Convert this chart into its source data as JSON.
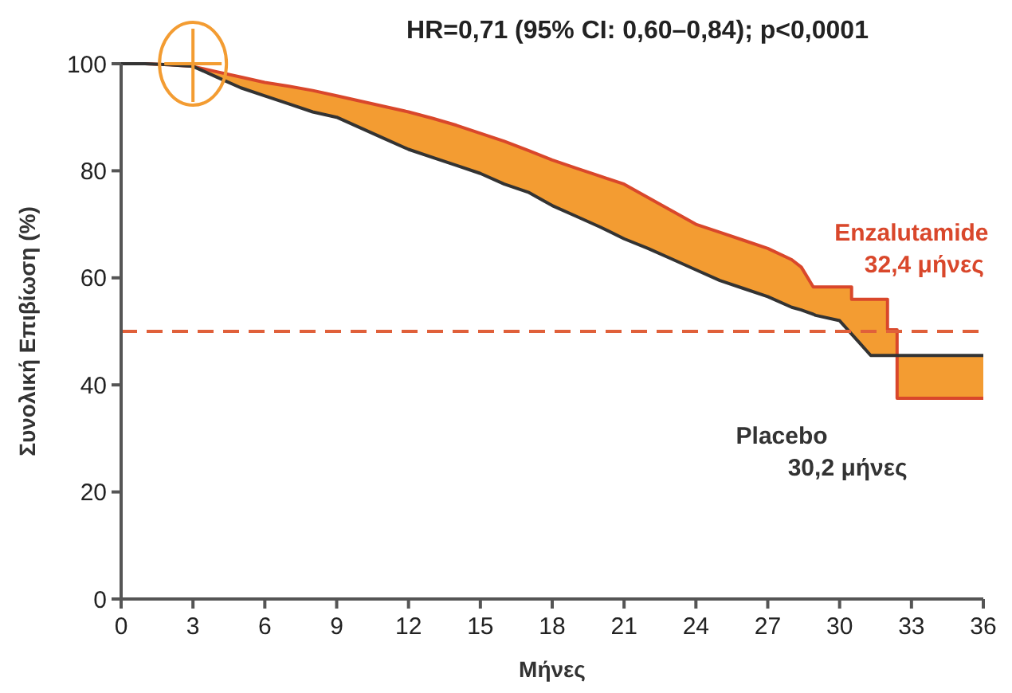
{
  "chart_data": {
    "type": "line",
    "title": "HR=0,71 (95% CI: 0,60–0,84); p<0,0001",
    "xlabel": "Μήνες",
    "ylabel": "Συνολική Επιβίωση (%)",
    "x": [
      0,
      1,
      2,
      3,
      4,
      5,
      6,
      7,
      8,
      9,
      10,
      11,
      12,
      13,
      14,
      15,
      16,
      17,
      18,
      19,
      20,
      21,
      22,
      23,
      24,
      25,
      26,
      27,
      28,
      28.4,
      28.9,
      29,
      30,
      30.4,
      30.5,
      30.5,
      30.8,
      31.3,
      32,
      32,
      32.4,
      32.4,
      36
    ],
    "series": [
      {
        "name": "Enzalutamide",
        "color": "#d9472b",
        "values": [
          100,
          100,
          99.8,
          99.5,
          98.5,
          97.5,
          96.5,
          95.8,
          95,
          94,
          93,
          92,
          91,
          89.8,
          88.5,
          87,
          85.5,
          83.8,
          82,
          80.5,
          79,
          77.5,
          75,
          72.5,
          70,
          68.5,
          67,
          65.5,
          63.4,
          62,
          58.3,
          58.3,
          58.3,
          58.3,
          58.3,
          56,
          56,
          56,
          56,
          50.3,
          50.3,
          37.5,
          37.5
        ],
        "lower": [
          100,
          100,
          99.8,
          99.5,
          97.5,
          95.5,
          94,
          92.5,
          91,
          90,
          88,
          86,
          84,
          82.5,
          81,
          79.5,
          77.5,
          76,
          73.5,
          71.5,
          69.5,
          67.3,
          65.5,
          63.5,
          61.5,
          59.5,
          58,
          56.5,
          54.5,
          54,
          53.2,
          53,
          52,
          50,
          49.5,
          49.5,
          48,
          45.5,
          45.5,
          45.5,
          45.5,
          45.5,
          45.5
        ],
        "upper": [
          100,
          100,
          99.8,
          99.5,
          98.5,
          97.5,
          96.5,
          95.8,
          95,
          94,
          93,
          92,
          91,
          89.8,
          88.5,
          87,
          85.5,
          83.8,
          82,
          80.5,
          79,
          77.5,
          75,
          72.5,
          70,
          68.5,
          67,
          65.5,
          63.4,
          62,
          58.3,
          58.3,
          58.3,
          58.3,
          58.3,
          56,
          56,
          56,
          56,
          50.3,
          50.3,
          37.5,
          37.5
        ]
      },
      {
        "name": "Placebo",
        "color": "#333333",
        "values": [
          100,
          100,
          99.8,
          99.5,
          97.5,
          95.5,
          94,
          92.5,
          91,
          90,
          88,
          86,
          84,
          82.5,
          81,
          79.5,
          77.5,
          76,
          73.5,
          71.5,
          69.5,
          67.3,
          65.5,
          63.5,
          61.5,
          59.5,
          58,
          56.5,
          54.5,
          54,
          53.2,
          53,
          52,
          50,
          49.5,
          49.5,
          48,
          45.5,
          45.5,
          45.5,
          45.5,
          45.5,
          45.5
        ]
      }
    ],
    "annotations": [
      "32,4 μήνες",
      "30,2 μήνες"
    ],
    "ref_lines": [
      {
        "axis": "y",
        "value": 50,
        "color": "#e0603a",
        "line_style": "dashed"
      }
    ],
    "xlim": [
      0,
      36
    ],
    "xticks": [
      0,
      3,
      6,
      9,
      12,
      15,
      18,
      21,
      24,
      27,
      30,
      33,
      36
    ],
    "ylim": [
      0,
      100
    ],
    "yticks": [
      0,
      20,
      40,
      60,
      80,
      100
    ],
    "grid": false,
    "legend": false
  }
}
